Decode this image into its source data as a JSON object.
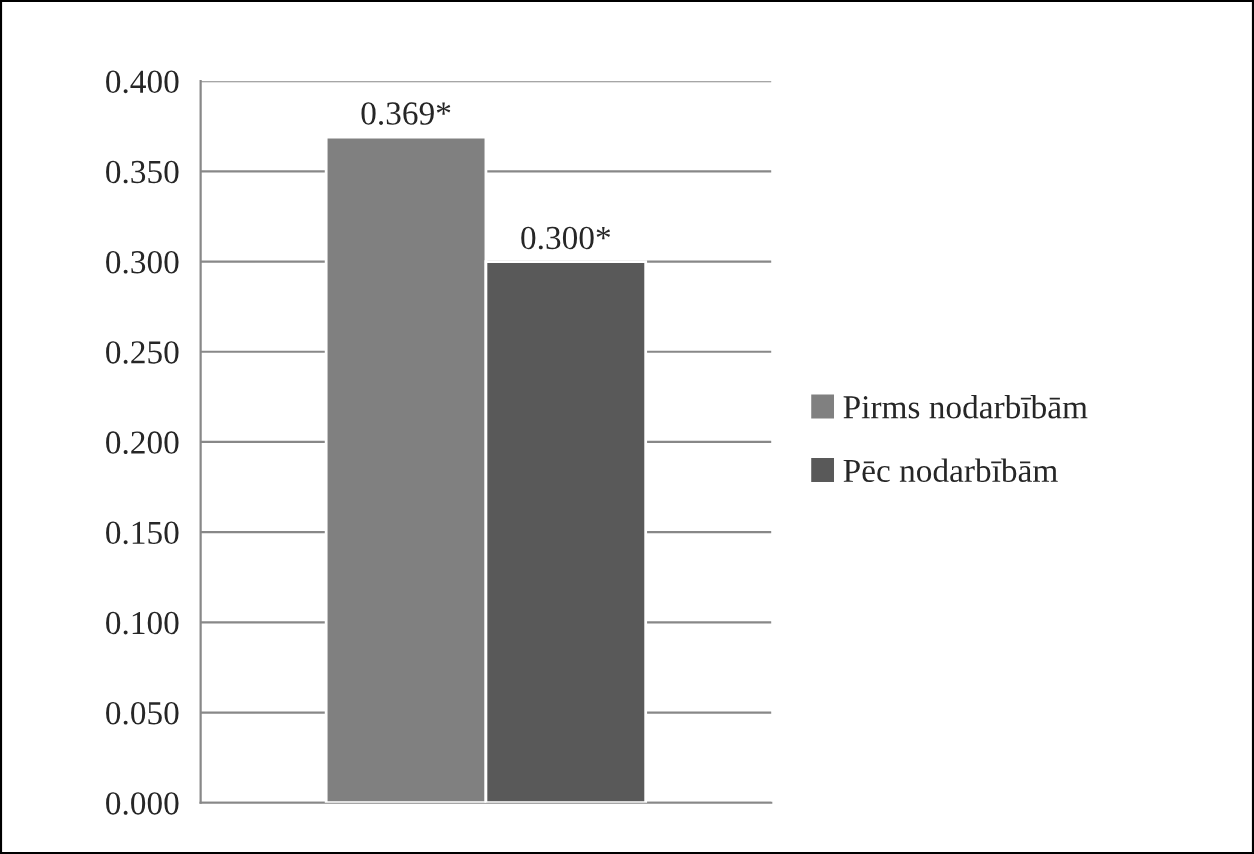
{
  "chart_data": {
    "type": "bar",
    "categories": [
      null
    ],
    "series": [
      {
        "name": "Pirms nodarbībām",
        "color": "#808080",
        "values": [
          0.369
        ],
        "value_labels": [
          "0.369*"
        ]
      },
      {
        "name": "Pēc nodarbībām",
        "color": "#595959",
        "values": [
          0.3
        ],
        "value_labels": [
          "0.300*"
        ]
      }
    ],
    "ylim": [
      0,
      0.4
    ],
    "yticks": [
      {
        "value": 0,
        "label": "0.000"
      },
      {
        "value": 0.05,
        "label": "0.050"
      },
      {
        "value": 0.1,
        "label": "0.100"
      },
      {
        "value": 0.15,
        "label": "0.150"
      },
      {
        "value": 0.2,
        "label": "0.200"
      },
      {
        "value": 0.25,
        "label": "0.250"
      },
      {
        "value": 0.3,
        "label": "0.300"
      },
      {
        "value": 0.35,
        "label": "0.350"
      },
      {
        "value": 0.4,
        "label": "0.400"
      }
    ],
    "grid": "y",
    "legend": "right"
  }
}
